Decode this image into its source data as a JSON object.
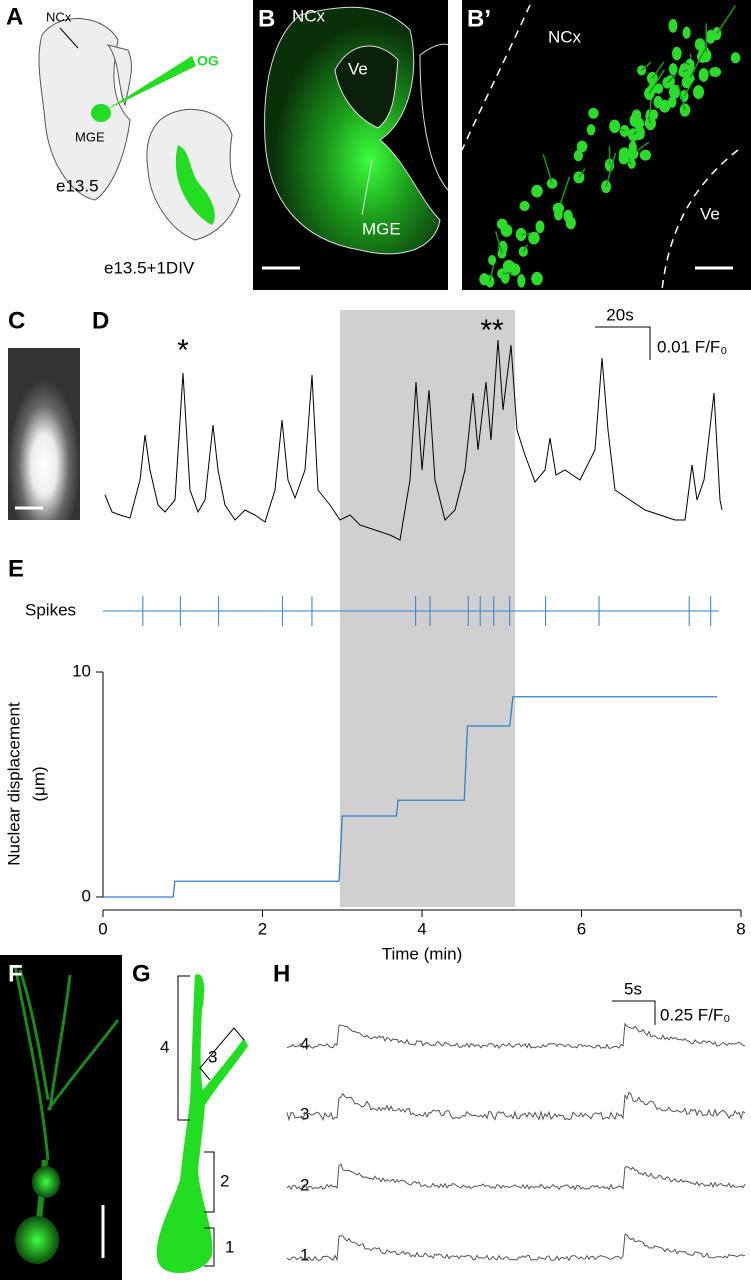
{
  "panels": {
    "A": {
      "label": "A",
      "ncx": "NCx",
      "og": "OG",
      "mge": "MGE",
      "stage1": "e13.5",
      "stage2": "e13.5+1DIV"
    },
    "B": {
      "label": "B",
      "ncx": "NCx",
      "ve": "Ve",
      "mge": "MGE"
    },
    "B2": {
      "label": "B’",
      "ncx": "NCx",
      "ve": "Ve"
    },
    "C": {
      "label": "C"
    },
    "D": {
      "label": "D",
      "asterisk1": "*",
      "asterisk2": "**",
      "time_scale": "20s",
      "amp_scale": "0.01 F/F₀"
    },
    "E": {
      "label": "E"
    },
    "F": {
      "label": "F"
    },
    "G": {
      "label": "G",
      "segments": [
        "1",
        "2",
        "3",
        "4"
      ]
    },
    "H": {
      "label": "H",
      "time_scale": "5s",
      "amp_scale": "0.25 F/F₀",
      "traces": [
        "4",
        "3",
        "2",
        "1"
      ]
    }
  },
  "chart_data": {
    "type": "line",
    "x_label": "Time (min)",
    "y_label": [
      "Nuclear displacement",
      "(μm)"
    ],
    "xlim": [
      0,
      8
    ],
    "xticks": [
      0,
      2,
      4,
      6,
      8
    ],
    "ylim": [
      0,
      10
    ],
    "yticks": [
      0,
      10
    ],
    "spikes": {
      "label": "Spikes",
      "color": "#2f7fd0",
      "x": [
        0.5,
        0.97,
        1.45,
        2.25,
        2.62,
        3.92,
        4.1,
        4.58,
        4.73,
        4.9,
        5.1,
        5.55,
        6.22,
        7.35,
        7.62
      ]
    },
    "series": [
      {
        "color": "#2f7fd0",
        "x": [
          0,
          0.88,
          0.9,
          2.96,
          3.0,
          3.68,
          3.7,
          4.53,
          4.57,
          5.1,
          5.14,
          7.7
        ],
        "values": [
          0,
          0,
          0.7,
          0.7,
          3.6,
          3.6,
          4.3,
          4.3,
          7.6,
          7.6,
          8.9,
          8.9
        ]
      }
    ]
  }
}
